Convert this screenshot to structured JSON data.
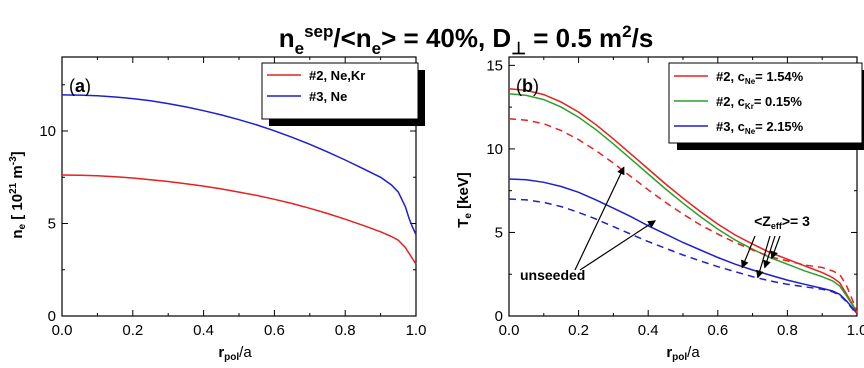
{
  "figure_title": {
    "parts": [
      {
        "text": "n",
        "style": "normal"
      },
      {
        "text": "e",
        "style": "sub"
      },
      {
        "text": "sep",
        "style": "sup"
      },
      {
        "text": "/<n",
        "style": "normal"
      },
      {
        "text": "e",
        "style": "sub"
      },
      {
        "text": "> = 40%, D",
        "style": "normal"
      },
      {
        "text": "⊥",
        "style": "sub"
      },
      {
        "text": " = 0.5 m",
        "style": "normal"
      },
      {
        "text": "2",
        "style": "sup"
      },
      {
        "text": "/s",
        "style": "normal"
      }
    ]
  },
  "chart_data": [
    {
      "type": "line",
      "panel_label": "(a)",
      "xlabel": "r_pol/a",
      "ylabel": "n_e [ 10^21 m^-3]",
      "xlim": [
        0.0,
        1.0
      ],
      "ylim": [
        0,
        14
      ],
      "xticks": [
        0.0,
        0.2,
        0.4,
        0.6,
        0.8,
        1.0
      ],
      "yticks": [
        0,
        5,
        10
      ],
      "legend_position": "top-right",
      "series": [
        {
          "name": "#2, Ne,Kr",
          "color": "#e8201f",
          "dash": "solid",
          "x": [
            0,
            0.05,
            0.1,
            0.15,
            0.2,
            0.25,
            0.3,
            0.35,
            0.4,
            0.45,
            0.5,
            0.55,
            0.6,
            0.65,
            0.7,
            0.75,
            0.8,
            0.85,
            0.9,
            0.93,
            0.95,
            0.97,
            0.98,
            0.99,
            1.0
          ],
          "y": [
            7.62,
            7.61,
            7.58,
            7.53,
            7.46,
            7.37,
            7.27,
            7.15,
            7.02,
            6.87,
            6.7,
            6.52,
            6.31,
            6.08,
            5.82,
            5.54,
            5.23,
            4.9,
            4.55,
            4.3,
            4.1,
            3.7,
            3.4,
            3.1,
            2.8
          ]
        },
        {
          "name": "#3, Ne",
          "color": "#1f1fd0",
          "dash": "solid",
          "x": [
            0,
            0.05,
            0.1,
            0.15,
            0.2,
            0.25,
            0.3,
            0.35,
            0.4,
            0.45,
            0.5,
            0.55,
            0.6,
            0.65,
            0.7,
            0.75,
            0.8,
            0.85,
            0.9,
            0.93,
            0.95,
            0.97,
            0.98,
            0.99,
            1.0
          ],
          "y": [
            11.95,
            11.94,
            11.9,
            11.84,
            11.75,
            11.63,
            11.48,
            11.3,
            11.1,
            10.87,
            10.61,
            10.33,
            10.01,
            9.66,
            9.28,
            8.87,
            8.43,
            7.97,
            7.5,
            7.1,
            6.7,
            5.9,
            5.3,
            4.8,
            4.4
          ]
        }
      ]
    },
    {
      "type": "line",
      "panel_label": "(b)",
      "xlabel": "r_pol/a",
      "ylabel": "T_e [keV]",
      "xlim": [
        0.0,
        1.0
      ],
      "ylim": [
        0,
        15.5
      ],
      "xticks": [
        0.0,
        0.2,
        0.4,
        0.6,
        0.8,
        1.0
      ],
      "yticks": [
        0,
        5,
        10,
        15
      ],
      "legend_position": "top-right",
      "annotations": [
        "<Z_eff>= 3",
        "unseeded"
      ],
      "series": [
        {
          "name": "#2, c_Ne= 1.54%",
          "color": "#e8201f",
          "dash": "solid",
          "x": [
            0,
            0.05,
            0.1,
            0.15,
            0.2,
            0.25,
            0.3,
            0.35,
            0.4,
            0.45,
            0.5,
            0.55,
            0.6,
            0.65,
            0.7,
            0.75,
            0.8,
            0.85,
            0.9,
            0.93,
            0.95,
            0.97,
            0.99,
            1.0
          ],
          "y": [
            13.6,
            13.5,
            13.25,
            12.8,
            12.2,
            11.45,
            10.6,
            9.7,
            8.8,
            7.9,
            7.05,
            6.25,
            5.5,
            4.85,
            4.3,
            3.8,
            3.4,
            3.0,
            2.6,
            2.3,
            2.0,
            1.3,
            0.6,
            0.2
          ]
        },
        {
          "name": "#2, c_Kr= 0.15%",
          "color": "#2aa12a",
          "dash": "solid",
          "x": [
            0,
            0.05,
            0.1,
            0.15,
            0.2,
            0.25,
            0.3,
            0.35,
            0.4,
            0.45,
            0.5,
            0.55,
            0.6,
            0.65,
            0.7,
            0.75,
            0.8,
            0.85,
            0.9,
            0.93,
            0.95,
            0.97,
            0.99,
            1.0
          ],
          "y": [
            13.3,
            13.2,
            12.95,
            12.5,
            11.9,
            11.15,
            10.3,
            9.4,
            8.5,
            7.6,
            6.75,
            5.95,
            5.2,
            4.55,
            4.0,
            3.5,
            3.1,
            2.7,
            2.35,
            2.1,
            1.8,
            1.2,
            0.55,
            0.2
          ]
        },
        {
          "name": "#3, c_Ne= 2.15%",
          "color": "#1f1fd0",
          "dash": "solid",
          "x": [
            0,
            0.05,
            0.1,
            0.15,
            0.2,
            0.25,
            0.3,
            0.35,
            0.4,
            0.45,
            0.5,
            0.55,
            0.6,
            0.65,
            0.7,
            0.75,
            0.8,
            0.85,
            0.9,
            0.93,
            0.95,
            0.97,
            0.99,
            1.0
          ],
          "y": [
            8.2,
            8.15,
            8.0,
            7.75,
            7.4,
            6.95,
            6.45,
            5.95,
            5.4,
            4.9,
            4.4,
            3.95,
            3.5,
            3.1,
            2.75,
            2.45,
            2.15,
            1.9,
            1.65,
            1.5,
            1.3,
            0.9,
            0.4,
            0.15
          ]
        },
        {
          "name": "unseeded (#2)",
          "color": "#e8201f",
          "dash": "dashed",
          "x": [
            0,
            0.05,
            0.1,
            0.15,
            0.2,
            0.25,
            0.3,
            0.35,
            0.4,
            0.45,
            0.5,
            0.55,
            0.6,
            0.65,
            0.7,
            0.75,
            0.8,
            0.85,
            0.9,
            0.93,
            0.95,
            0.97,
            0.99,
            1.0
          ],
          "y": [
            11.8,
            11.72,
            11.5,
            11.1,
            10.55,
            9.9,
            9.15,
            8.35,
            7.55,
            6.8,
            6.1,
            5.45,
            4.9,
            4.4,
            3.95,
            3.55,
            3.3,
            3.05,
            2.9,
            2.7,
            2.5,
            1.8,
            0.8,
            0.2
          ]
        },
        {
          "name": "unseeded (#3)",
          "color": "#1f1fd0",
          "dash": "dashed",
          "x": [
            0,
            0.05,
            0.1,
            0.15,
            0.2,
            0.25,
            0.3,
            0.35,
            0.4,
            0.45,
            0.5,
            0.55,
            0.6,
            0.65,
            0.7,
            0.75,
            0.8,
            0.85,
            0.9,
            0.93,
            0.95,
            0.97,
            0.99,
            1.0
          ],
          "y": [
            7.0,
            6.95,
            6.8,
            6.55,
            6.2,
            5.8,
            5.35,
            4.9,
            4.45,
            4.05,
            3.65,
            3.3,
            2.95,
            2.65,
            2.35,
            2.1,
            1.9,
            1.75,
            1.6,
            1.45,
            1.25,
            0.85,
            0.35,
            0.15
          ]
        }
      ]
    }
  ],
  "legend_a": {
    "entries": [
      {
        "text": "#2, Ne,Kr",
        "color": "#e8201f"
      },
      {
        "text": "#3, Ne",
        "color": "#1f1fd0"
      }
    ]
  },
  "legend_b": {
    "entries": [
      {
        "pre": "#2, c",
        "sub": "Ne",
        "post": "= 1.54%",
        "color": "#e8201f"
      },
      {
        "pre": "#2, c",
        "sub": "Kr",
        "post": "= 0.15%",
        "color": "#2aa12a"
      },
      {
        "pre": "#3, c",
        "sub": "Ne",
        "post": "= 2.15%",
        "color": "#1f1fd0"
      }
    ]
  },
  "axis_a": {
    "ylabel": {
      "n": "n",
      "e": "e",
      "rest1": " [ 10",
      "exp1": "21",
      "rest2": " m",
      "exp2": "-3",
      "rest3": "]"
    },
    "xlabel": {
      "r": "r",
      "sub": "pol",
      "rest": "/a"
    }
  },
  "axis_b": {
    "ylabel": {
      "t": "T",
      "e": "e",
      "rest": " [keV]"
    },
    "xlabel": {
      "r": "r",
      "sub": "pol",
      "rest": "/a"
    }
  },
  "annotations_b": {
    "zeff": {
      "pre": "<Z",
      "sub": "eff",
      "post": ">= 3"
    },
    "unseeded": "unseeded"
  },
  "panel_labels": {
    "a": {
      "open": "(",
      "letter": "a",
      "close": ")"
    },
    "b": {
      "open": "(",
      "letter": "b",
      "close": ")"
    }
  }
}
